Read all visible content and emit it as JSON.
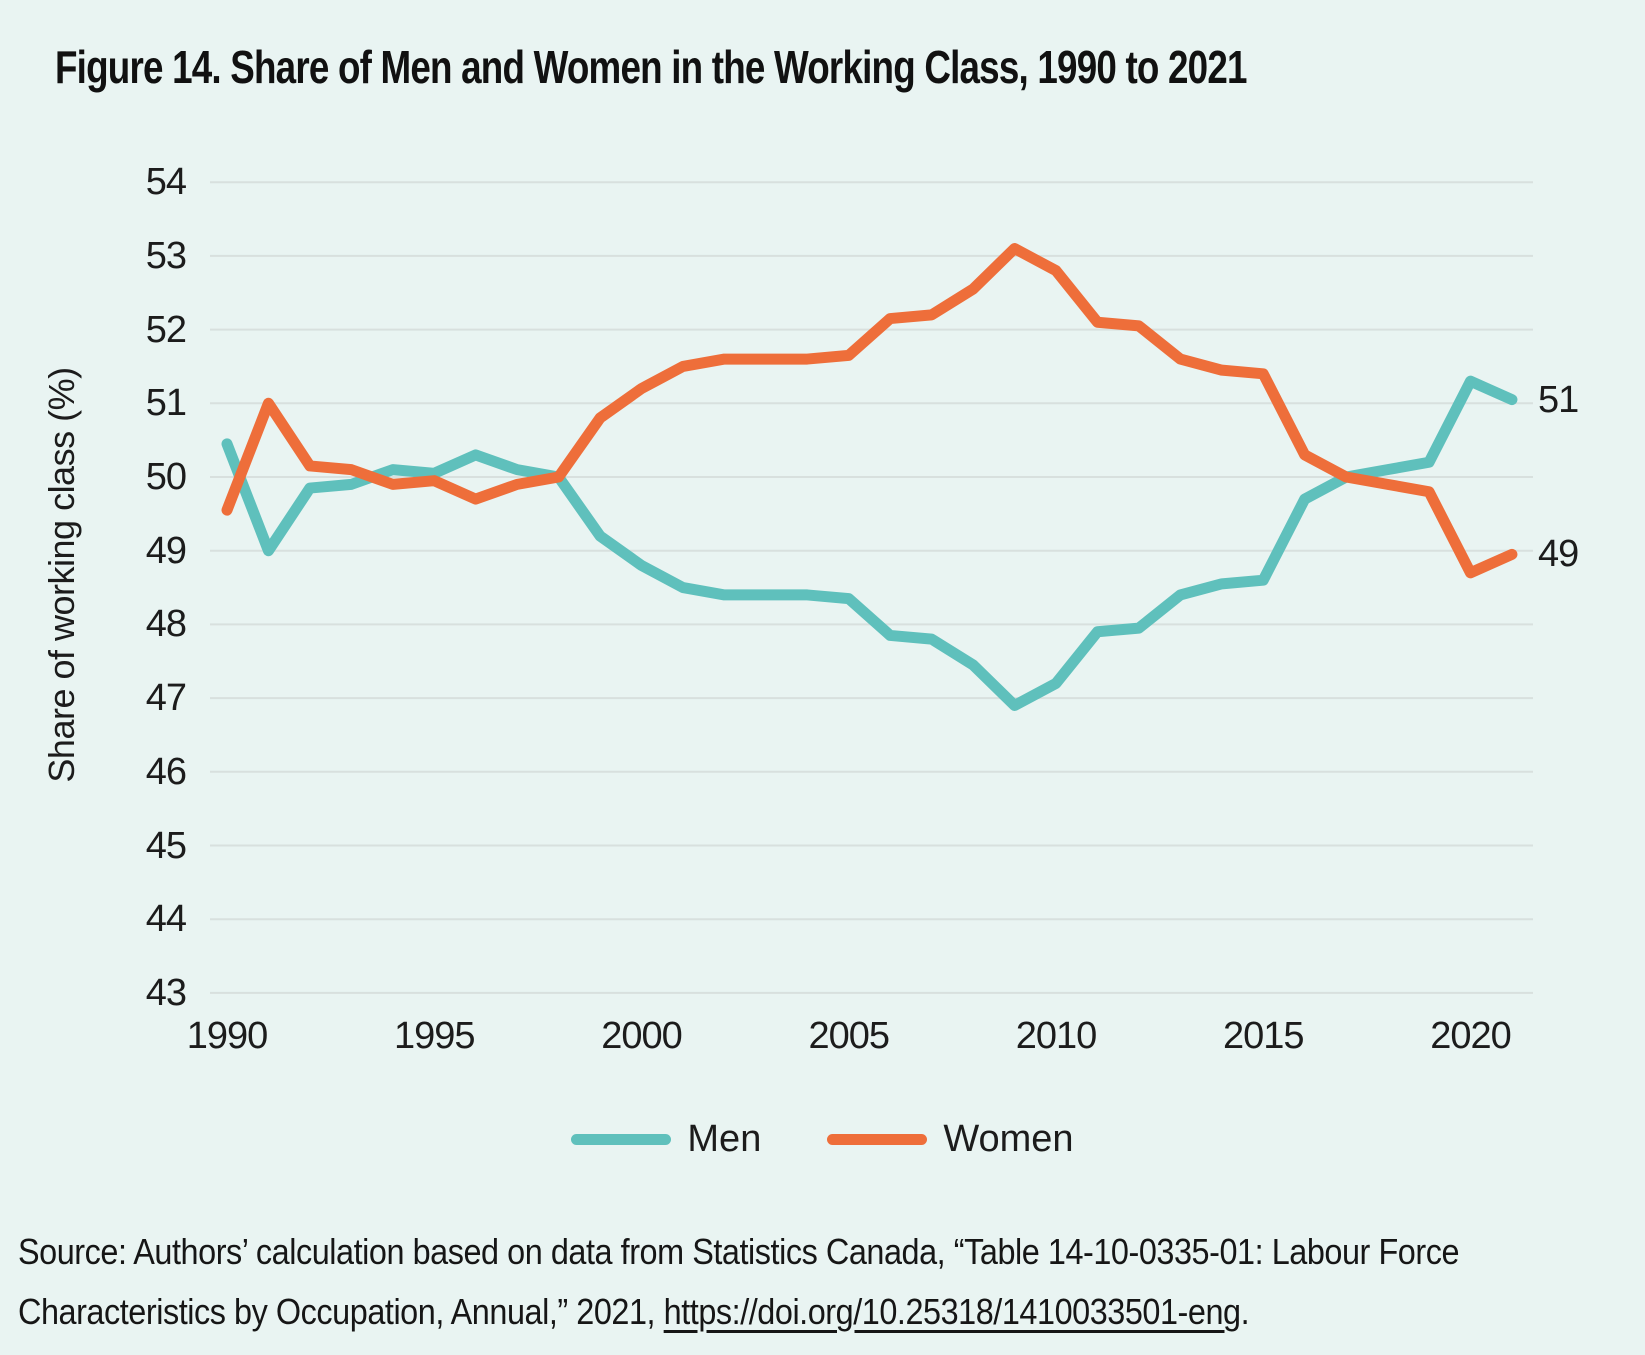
{
  "figure": {
    "title": "Figure 14. Share of Men and Women in the Working Class, 1990 to 2021",
    "source_line1": "Source: Authors’ calculation based on data from Statistics Canada, “Table 14-10-0335-01: Labour Force",
    "source_line2_prefix": "Characteristics by Occupation, Annual,” 2021, ",
    "source_link": "https://doi.org/10.25318/1410033501-eng",
    "source_line2_suffix": "."
  },
  "colors": {
    "background": "#e9f4f2",
    "grid": "#d8e0de",
    "text": "#1c1c1c",
    "men": "#5fc0bc",
    "women": "#ee6e3a"
  },
  "chart_data": {
    "type": "line",
    "title": "Figure 14. Share of Men and Women in the Working Class, 1990 to 2021",
    "xlabel": "",
    "ylabel": "Share of working class (%)",
    "ylim": [
      43,
      54
    ],
    "grid": true,
    "legend_position": "bottom",
    "y_ticks": [
      43,
      44,
      45,
      46,
      47,
      48,
      49,
      50,
      51,
      52,
      53,
      54
    ],
    "x_ticks": [
      1990,
      1995,
      2000,
      2005,
      2010,
      2015,
      2020
    ],
    "years": [
      1990,
      1991,
      1992,
      1993,
      1994,
      1995,
      1996,
      1997,
      1998,
      1999,
      2000,
      2001,
      2002,
      2003,
      2004,
      2005,
      2006,
      2007,
      2008,
      2009,
      2010,
      2011,
      2012,
      2013,
      2014,
      2015,
      2016,
      2017,
      2018,
      2019,
      2020,
      2021
    ],
    "series": [
      {
        "name": "Men",
        "color": "#5fc0bc",
        "end_label": "51",
        "values": [
          50.45,
          49.0,
          49.85,
          49.9,
          50.1,
          50.05,
          50.3,
          50.1,
          50.0,
          49.2,
          48.8,
          48.5,
          48.4,
          48.4,
          48.4,
          48.35,
          47.85,
          47.8,
          47.45,
          46.9,
          47.2,
          47.9,
          47.95,
          48.4,
          48.55,
          48.6,
          49.7,
          50.0,
          50.1,
          50.2,
          51.3,
          51.05
        ]
      },
      {
        "name": "Women",
        "color": "#ee6e3a",
        "end_label": "49",
        "values": [
          49.55,
          51.0,
          50.15,
          50.1,
          49.9,
          49.95,
          49.7,
          49.9,
          50.0,
          50.8,
          51.2,
          51.5,
          51.6,
          51.6,
          51.6,
          51.65,
          52.15,
          52.2,
          52.55,
          53.1,
          52.8,
          52.1,
          52.05,
          51.6,
          51.45,
          51.4,
          50.3,
          50.0,
          49.9,
          49.8,
          48.7,
          48.95
        ]
      }
    ]
  }
}
